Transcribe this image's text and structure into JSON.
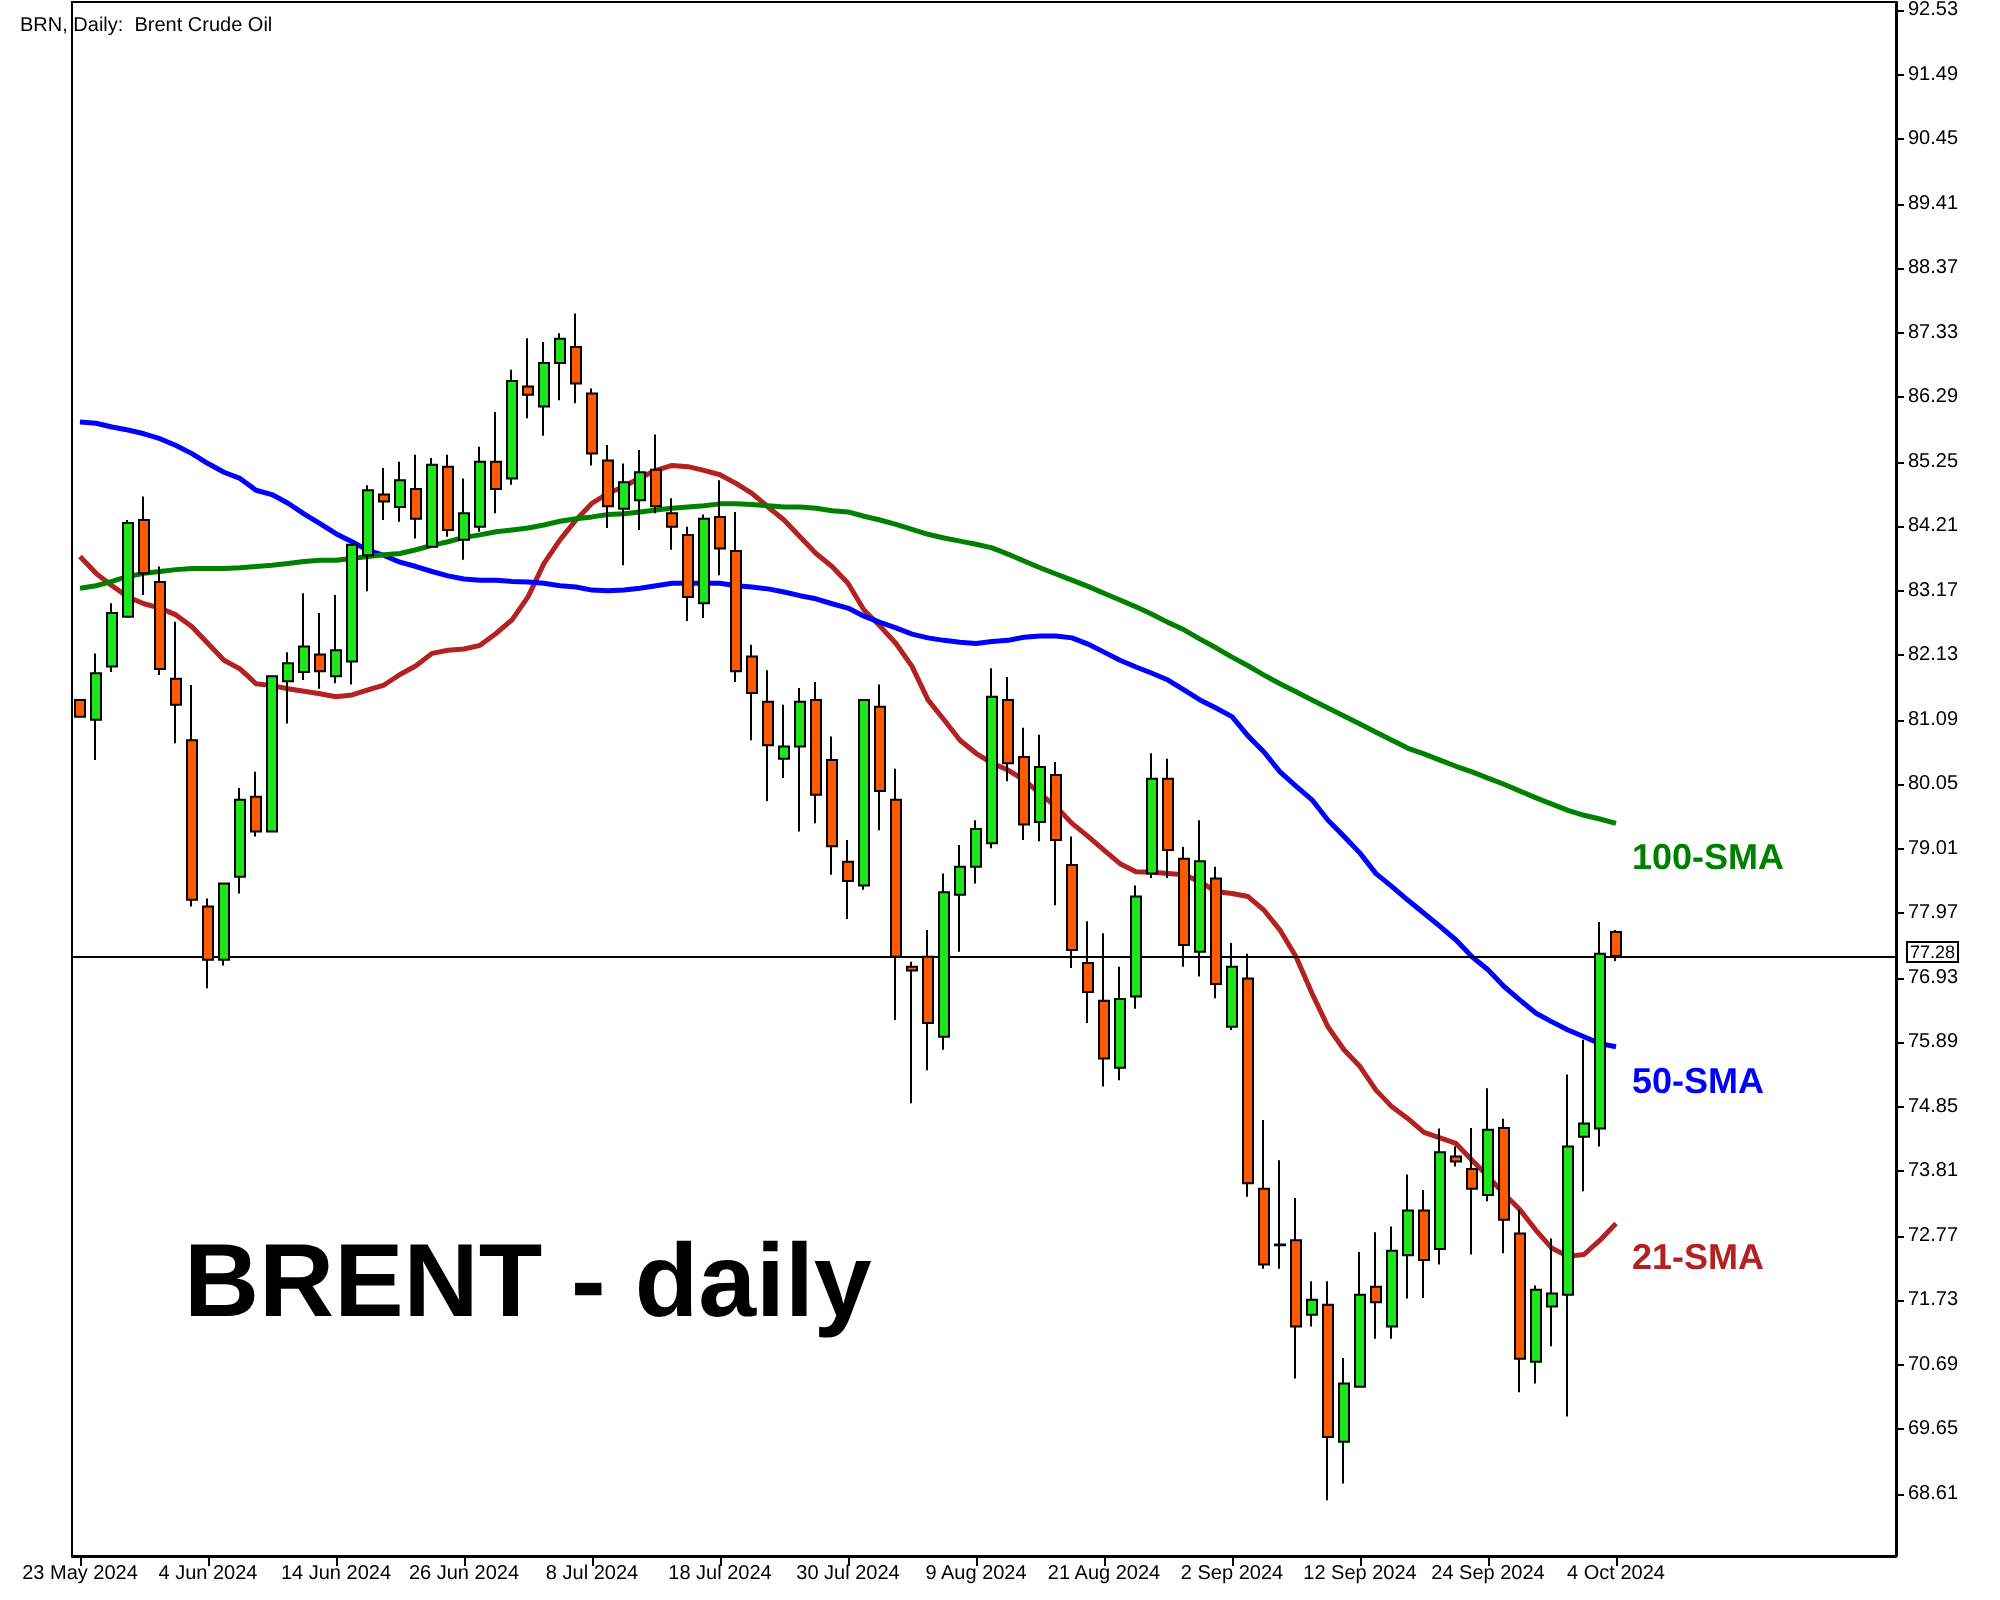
{
  "chart_data": {
    "type": "candlestick",
    "title": "BRN, Daily:  Brent Crude Oil",
    "categories": [
      "23 May 2024",
      null,
      null,
      null,
      null,
      null,
      null,
      null,
      "4 Jun 2024",
      null,
      null,
      null,
      null,
      null,
      null,
      null,
      "14 Jun 2024",
      null,
      null,
      null,
      null,
      null,
      null,
      null,
      "26 Jun 2024",
      null,
      null,
      null,
      null,
      null,
      null,
      null,
      "8 Jul 2024",
      null,
      null,
      null,
      null,
      null,
      null,
      null,
      "18 Jul 2024",
      null,
      null,
      null,
      null,
      null,
      null,
      null,
      "30 Jul 2024",
      null,
      null,
      null,
      null,
      null,
      null,
      null,
      "9 Aug 2024",
      null,
      null,
      null,
      null,
      null,
      null,
      null,
      "21 Aug 2024",
      null,
      null,
      null,
      null,
      null,
      null,
      null,
      "2 Sep 2024",
      null,
      null,
      null,
      null,
      null,
      null,
      null,
      "12 Sep 2024",
      null,
      null,
      null,
      null,
      null,
      null,
      null,
      "24 Sep 2024",
      null,
      null,
      null,
      null,
      null,
      null,
      null,
      "4 Oct 2024"
    ],
    "ohlc": [
      [
        81.41,
        81.41,
        81.14,
        81.14
      ],
      [
        81.09,
        82.16,
        80.44,
        81.84
      ],
      [
        81.95,
        82.97,
        81.86,
        82.81
      ],
      [
        82.75,
        84.31,
        82.75,
        84.26
      ],
      [
        84.31,
        84.69,
        83.1,
        83.45
      ],
      [
        83.31,
        83.56,
        81.81,
        81.91
      ],
      [
        81.75,
        82.67,
        80.71,
        81.33
      ],
      [
        80.76,
        81.65,
        78.08,
        78.19
      ],
      [
        78.08,
        78.21,
        76.76,
        77.22
      ],
      [
        77.22,
        78.45,
        77.13,
        78.45
      ],
      [
        78.56,
        79.99,
        78.29,
        79.8
      ],
      [
        79.85,
        80.25,
        79.21,
        79.29
      ],
      [
        79.29,
        81.79,
        79.29,
        81.79
      ],
      [
        81.71,
        82.18,
        81.03,
        82.0
      ],
      [
        81.86,
        83.13,
        81.73,
        82.27
      ],
      [
        82.14,
        82.81,
        81.59,
        81.87
      ],
      [
        81.79,
        83.1,
        81.68,
        82.21
      ],
      [
        82.03,
        83.91,
        81.66,
        83.91
      ],
      [
        83.74,
        84.87,
        83.16,
        84.79
      ],
      [
        84.72,
        85.15,
        84.31,
        84.61
      ],
      [
        84.52,
        85.25,
        84.28,
        84.95
      ],
      [
        84.81,
        85.36,
        84.01,
        84.33
      ],
      [
        83.88,
        85.31,
        83.88,
        85.2
      ],
      [
        85.17,
        85.36,
        84.04,
        84.15
      ],
      [
        83.99,
        84.98,
        83.67,
        84.42
      ],
      [
        84.2,
        85.49,
        84.12,
        85.25
      ],
      [
        85.25,
        86.05,
        84.42,
        84.81
      ],
      [
        84.98,
        86.73,
        84.88,
        86.55
      ],
      [
        86.46,
        87.24,
        85.95,
        86.33
      ],
      [
        86.14,
        87.18,
        85.67,
        86.84
      ],
      [
        86.84,
        87.32,
        86.24,
        87.23
      ],
      [
        87.1,
        87.64,
        86.19,
        86.51
      ],
      [
        86.35,
        86.43,
        85.19,
        85.38
      ],
      [
        85.27,
        85.52,
        84.18,
        84.53
      ],
      [
        84.49,
        85.22,
        83.58,
        84.92
      ],
      [
        84.63,
        85.44,
        84.15,
        85.08
      ],
      [
        85.12,
        85.69,
        84.42,
        84.53
      ],
      [
        84.42,
        84.66,
        83.83,
        84.2
      ],
      [
        84.07,
        84.2,
        82.68,
        83.07
      ],
      [
        82.97,
        84.4,
        82.73,
        84.33
      ],
      [
        84.36,
        84.95,
        83.42,
        83.85
      ],
      [
        83.81,
        84.44,
        81.7,
        81.87
      ],
      [
        82.11,
        82.3,
        80.76,
        81.52
      ],
      [
        81.38,
        81.89,
        79.78,
        80.68
      ],
      [
        80.46,
        81.33,
        80.15,
        80.66
      ],
      [
        80.66,
        81.6,
        79.29,
        81.38
      ],
      [
        81.41,
        81.7,
        79.42,
        79.88
      ],
      [
        80.44,
        80.82,
        78.59,
        79.05
      ],
      [
        78.8,
        79.15,
        77.88,
        78.49
      ],
      [
        78.42,
        81.41,
        78.35,
        81.41
      ],
      [
        81.3,
        81.66,
        79.31,
        79.94
      ],
      [
        79.8,
        80.3,
        76.25,
        77.27
      ],
      [
        77.11,
        77.19,
        74.91,
        77.05
      ],
      [
        77.27,
        77.7,
        75.44,
        76.2
      ],
      [
        75.98,
        78.61,
        75.77,
        78.31
      ],
      [
        78.27,
        79.07,
        77.35,
        78.72
      ],
      [
        78.72,
        79.47,
        78.45,
        79.33
      ],
      [
        79.1,
        81.92,
        79.02,
        81.46
      ],
      [
        81.41,
        81.78,
        80.1,
        80.39
      ],
      [
        80.49,
        80.96,
        79.15,
        79.4
      ],
      [
        79.44,
        80.85,
        79.13,
        80.33
      ],
      [
        80.2,
        80.41,
        78.1,
        79.15
      ],
      [
        78.75,
        79.21,
        77.09,
        77.38
      ],
      [
        77.17,
        77.84,
        76.2,
        76.7
      ],
      [
        76.56,
        77.65,
        75.18,
        75.63
      ],
      [
        75.48,
        77.11,
        75.28,
        76.59
      ],
      [
        76.63,
        78.42,
        76.43,
        78.24
      ],
      [
        78.61,
        80.55,
        78.54,
        80.14
      ],
      [
        80.14,
        80.46,
        78.54,
        78.99
      ],
      [
        78.85,
        79.04,
        77.11,
        77.46
      ],
      [
        77.35,
        79.47,
        76.95,
        78.81
      ],
      [
        78.53,
        78.72,
        76.6,
        76.83
      ],
      [
        76.14,
        77.49,
        76.09,
        77.11
      ],
      [
        76.92,
        77.32,
        73.4,
        73.62
      ],
      [
        73.53,
        74.64,
        72.24,
        72.31
      ],
      [
        72.63,
        73.99,
        72.24,
        72.62
      ],
      [
        72.7,
        73.38,
        70.47,
        71.31
      ],
      [
        71.5,
        72.04,
        71.31,
        71.74
      ],
      [
        71.66,
        72.04,
        68.51,
        69.53
      ],
      [
        69.45,
        70.8,
        68.78,
        70.39
      ],
      [
        70.34,
        72.51,
        70.34,
        71.82
      ],
      [
        71.95,
        72.83,
        71.11,
        71.7
      ],
      [
        71.31,
        72.92,
        71.11,
        72.53
      ],
      [
        72.46,
        73.76,
        71.76,
        73.18
      ],
      [
        73.18,
        73.51,
        71.77,
        72.38
      ],
      [
        72.56,
        74.5,
        72.31,
        74.12
      ],
      [
        74.05,
        74.21,
        73.89,
        73.97
      ],
      [
        73.85,
        74.51,
        72.47,
        73.53
      ],
      [
        73.43,
        75.15,
        73.33,
        74.48
      ],
      [
        74.51,
        74.66,
        72.49,
        73.03
      ],
      [
        72.81,
        73.19,
        70.25,
        70.79
      ],
      [
        70.74,
        71.97,
        70.39,
        71.9
      ],
      [
        71.63,
        72.73,
        70.99,
        71.84
      ],
      [
        71.82,
        75.37,
        69.86,
        74.21
      ],
      [
        74.37,
        75.93,
        73.49,
        74.58
      ],
      [
        74.5,
        77.83,
        74.21,
        77.32
      ],
      [
        77.67,
        77.7,
        77.2,
        77.28
      ]
    ],
    "colors": [
      "#ff5a00",
      "#1ee61e",
      "#1ee61e",
      "#1ee61e",
      "#ff5a00",
      "#ff5a00",
      "#ff5a00",
      "#ff5a00",
      "#ff5a00",
      "#1ee61e",
      "#1ee61e",
      "#ff5a00",
      "#1ee61e",
      "#1ee61e",
      "#1ee61e",
      "#ff5a00",
      "#1ee61e",
      "#1ee61e",
      "#1ee61e",
      "#ff5a00",
      "#1ee61e",
      "#ff5a00",
      "#1ee61e",
      "#ff5a00",
      "#1ee61e",
      "#1ee61e",
      "#ff5a00",
      "#1ee61e",
      "#ff5a00",
      "#1ee61e",
      "#1ee61e",
      "#ff5a00",
      "#ff5a00",
      "#ff5a00",
      "#1ee61e",
      "#1ee61e",
      "#ff5a00",
      "#ff5a00",
      "#ff5a00",
      "#1ee61e",
      "#ff5a00",
      "#ff5a00",
      "#ff5a00",
      "#ff5a00",
      "#1ee61e",
      "#1ee61e",
      "#ff5a00",
      "#ff5a00",
      "#ff5a00",
      "#1ee61e",
      "#ff5a00",
      "#ff5a00",
      "#ff5a00",
      "#ff5a00",
      "#1ee61e",
      "#1ee61e",
      "#1ee61e",
      "#1ee61e",
      "#ff5a00",
      "#ff5a00",
      "#1ee61e",
      "#ff5a00",
      "#ff5a00",
      "#ff5a00",
      "#ff5a00",
      "#1ee61e",
      "#1ee61e",
      "#1ee61e",
      "#ff5a00",
      "#ff5a00",
      "#1ee61e",
      "#ff5a00",
      "#1ee61e",
      "#ff5a00",
      "#ff5a00",
      "#ff5a00",
      "#ff5a00",
      "#1ee61e",
      "#ff5a00",
      "#1ee61e",
      "#1ee61e",
      "#ff5a00",
      "#1ee61e",
      "#1ee61e",
      "#ff5a00",
      "#1ee61e",
      "#ff5a00",
      "#ff5a00",
      "#1ee61e",
      "#ff5a00",
      "#ff5a00",
      "#1ee61e",
      "#1ee61e",
      "#1ee61e",
      "#1ee61e",
      "#1ee61e",
      "#ff5a00"
    ],
    "series": [
      {
        "type": "line",
        "name": "100-SMA",
        "color": "#008000",
        "values": [
          83.21,
          83.25,
          83.32,
          83.4,
          83.45,
          83.48,
          83.51,
          83.53,
          83.53,
          83.53,
          83.54,
          83.56,
          83.58,
          83.61,
          83.64,
          83.66,
          83.66,
          83.69,
          83.72,
          83.75,
          83.77,
          83.83,
          83.9,
          83.96,
          84.03,
          84.07,
          84.12,
          84.15,
          84.18,
          84.23,
          84.29,
          84.33,
          84.36,
          84.4,
          84.41,
          84.44,
          84.47,
          84.5,
          84.52,
          84.54,
          84.57,
          84.57,
          84.56,
          84.54,
          84.52,
          84.52,
          84.5,
          84.46,
          84.44,
          84.37,
          84.31,
          84.24,
          84.16,
          84.08,
          84.02,
          83.97,
          83.92,
          83.86,
          83.76,
          83.65,
          83.54,
          83.44,
          83.34,
          83.24,
          83.13,
          83.02,
          82.91,
          82.79,
          82.66,
          82.54,
          82.39,
          82.25,
          82.1,
          81.96,
          81.81,
          81.67,
          81.54,
          81.41,
          81.28,
          81.15,
          81.02,
          80.89,
          80.76,
          80.63,
          80.54,
          80.44,
          80.34,
          80.25,
          80.15,
          80.05,
          79.94,
          79.83,
          79.73,
          79.63,
          79.55,
          79.49,
          79.42
        ]
      },
      {
        "type": "line",
        "name": "50-SMA",
        "color": "#0000ff",
        "values": [
          85.89,
          85.87,
          85.81,
          85.76,
          85.7,
          85.62,
          85.51,
          85.38,
          85.22,
          85.08,
          84.98,
          84.79,
          84.72,
          84.58,
          84.41,
          84.25,
          84.09,
          83.96,
          83.82,
          83.74,
          83.63,
          83.56,
          83.48,
          83.41,
          83.36,
          83.34,
          83.34,
          83.32,
          83.31,
          83.29,
          83.25,
          83.23,
          83.18,
          83.17,
          83.18,
          83.21,
          83.25,
          83.29,
          83.29,
          83.29,
          83.29,
          83.25,
          83.23,
          83.2,
          83.15,
          83.09,
          83.04,
          82.96,
          82.89,
          82.76,
          82.66,
          82.57,
          82.47,
          82.41,
          82.37,
          82.34,
          82.32,
          82.35,
          82.37,
          82.42,
          82.44,
          82.44,
          82.41,
          82.31,
          82.18,
          82.05,
          81.94,
          81.84,
          81.73,
          81.57,
          81.41,
          81.28,
          81.14,
          80.83,
          80.57,
          80.25,
          80.02,
          79.8,
          79.47,
          79.21,
          78.94,
          78.61,
          78.4,
          78.18,
          77.97,
          77.76,
          77.54,
          77.27,
          77.06,
          76.79,
          76.57,
          76.36,
          76.22,
          76.09,
          75.98,
          75.87,
          75.82
        ]
      },
      {
        "type": "line",
        "name": "21-SMA",
        "color": "#b22222",
        "values": [
          83.72,
          83.45,
          83.25,
          83.07,
          82.96,
          82.89,
          82.78,
          82.59,
          82.32,
          82.05,
          81.91,
          81.67,
          81.64,
          81.59,
          81.55,
          81.51,
          81.46,
          81.49,
          81.57,
          81.65,
          81.82,
          81.96,
          82.16,
          82.21,
          82.23,
          82.29,
          82.48,
          82.7,
          83.07,
          83.61,
          83.99,
          84.31,
          84.58,
          84.74,
          84.85,
          84.99,
          85.11,
          85.19,
          85.17,
          85.11,
          85.04,
          84.9,
          84.74,
          84.52,
          84.31,
          84.04,
          83.77,
          83.56,
          83.29,
          82.86,
          82.6,
          82.32,
          81.95,
          81.41,
          81.09,
          80.76,
          80.55,
          80.39,
          80.28,
          80.12,
          79.9,
          79.69,
          79.42,
          79.21,
          78.99,
          78.77,
          78.64,
          78.63,
          78.61,
          78.59,
          78.48,
          78.32,
          78.29,
          78.24,
          78.02,
          77.7,
          77.27,
          76.68,
          76.14,
          75.77,
          75.5,
          75.12,
          74.85,
          74.66,
          74.44,
          74.35,
          74.26,
          73.99,
          73.73,
          73.45,
          73.19,
          72.86,
          72.57,
          72.44,
          72.47,
          72.7,
          72.97
        ]
      }
    ],
    "ylim": [
      67.61,
      92.66
    ],
    "yticks": [
      68.61,
      69.65,
      70.69,
      71.73,
      72.77,
      73.81,
      74.85,
      75.89,
      76.93,
      77.97,
      79.01,
      80.05,
      81.09,
      82.13,
      83.17,
      84.21,
      85.25,
      86.29,
      87.33,
      88.37,
      89.41,
      90.45,
      91.49,
      92.53
    ],
    "ref_lines": [
      {
        "axis": "y",
        "value": 77.28,
        "label": "77.28",
        "color": "#000000"
      }
    ],
    "annotations": [
      "BRENT - daily"
    ]
  }
}
